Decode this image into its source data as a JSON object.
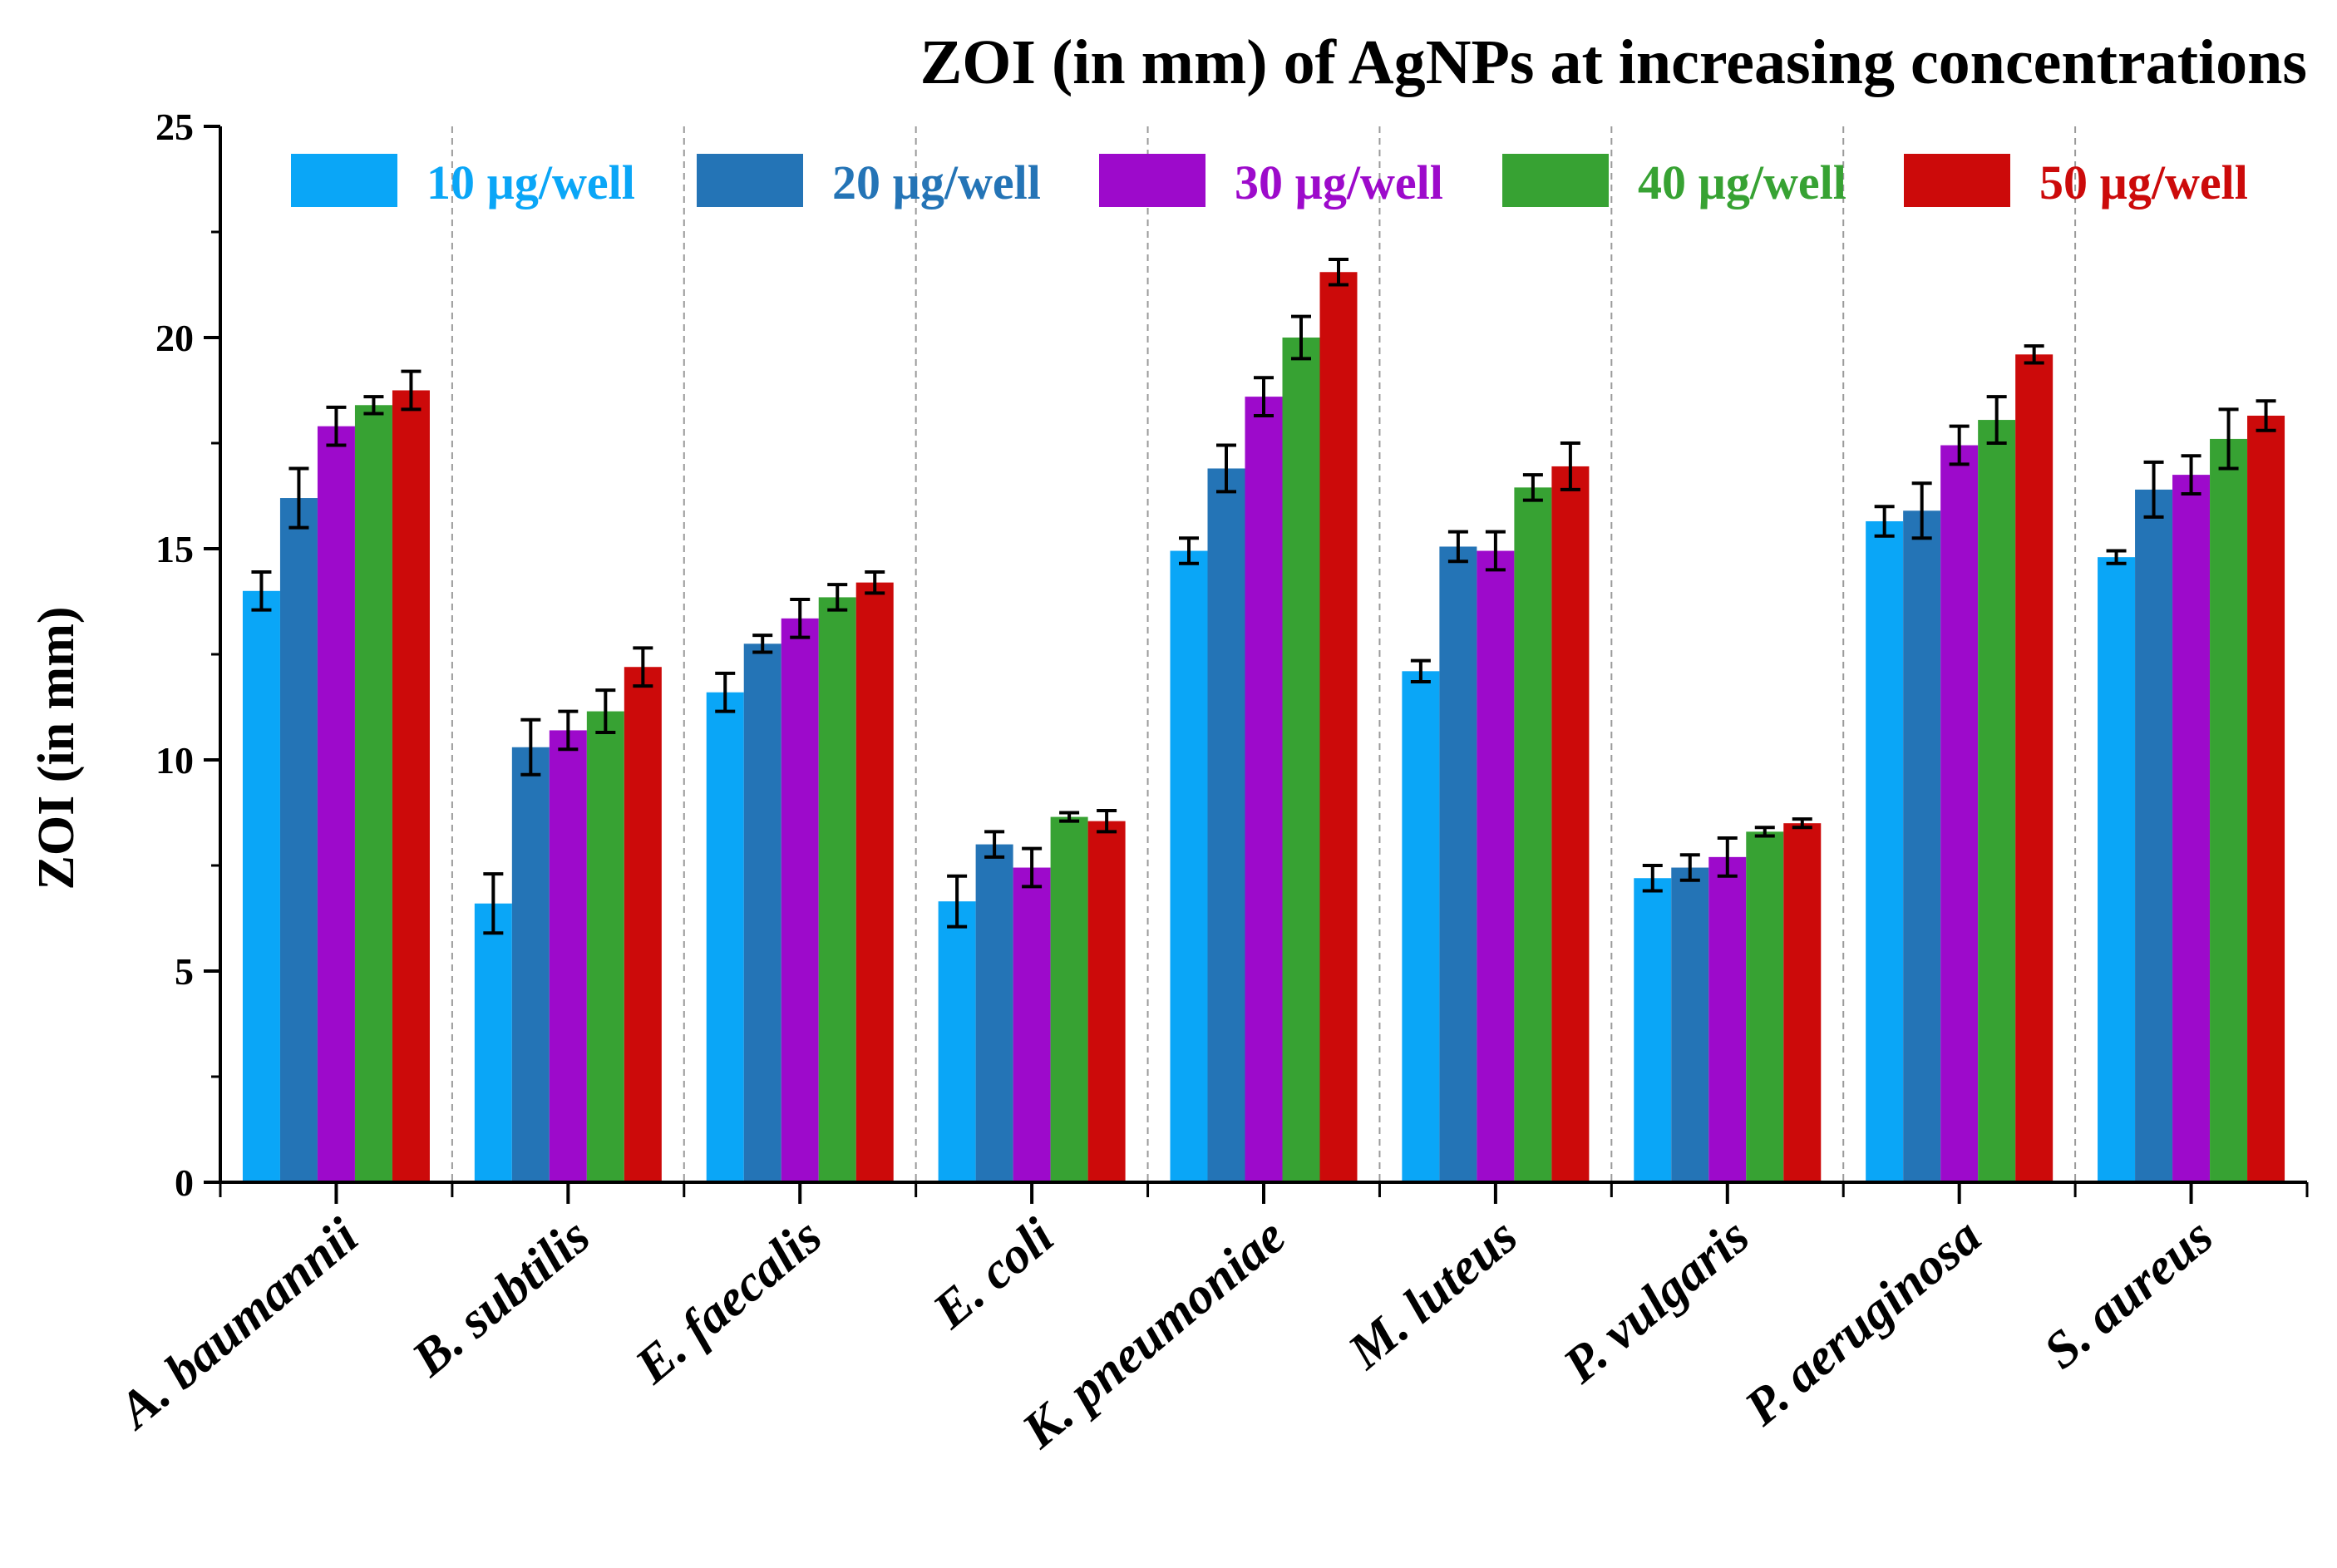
{
  "chart_data": {
    "type": "bar",
    "title": "ZOI (in mm) of AgNPs at increasing concentrations",
    "xlabel": "",
    "ylabel": "ZOI (in mm)",
    "ylim": [
      0,
      25
    ],
    "yticks": [
      "0",
      "5",
      "10",
      "15",
      "20",
      "25"
    ],
    "ytick_values": [
      0,
      5,
      10,
      15,
      20,
      25
    ],
    "grid": "vertical dashed separators between categories",
    "legend_position": "top",
    "categories": [
      "A. baumannii",
      "B. subtilis",
      "E. faecalis",
      "E. coli",
      "K. pneumoniae",
      "M. luteus",
      "P. vulgaris",
      "P. aeruginosa",
      "S. aureus"
    ],
    "series": [
      {
        "name": "10 µg/well",
        "color": "#0AA6F7",
        "values": [
          14.0,
          6.6,
          11.6,
          6.65,
          14.95,
          12.1,
          7.2,
          15.65,
          14.8
        ],
        "errors": [
          0.45,
          0.7,
          0.45,
          0.6,
          0.3,
          0.25,
          0.3,
          0.35,
          0.15
        ]
      },
      {
        "name": "20 µg/well",
        "color": "#2474B6",
        "values": [
          16.2,
          10.3,
          12.75,
          8.0,
          16.9,
          15.05,
          7.45,
          15.9,
          16.4
        ],
        "errors": [
          0.7,
          0.65,
          0.2,
          0.3,
          0.55,
          0.35,
          0.3,
          0.65,
          0.65
        ]
      },
      {
        "name": "30 µg/well",
        "color": "#9D0ACB",
        "values": [
          17.9,
          10.7,
          13.35,
          7.45,
          18.6,
          14.95,
          7.7,
          17.45,
          16.75
        ]
      },
      {
        "name": "40 µg/well",
        "color": "#37A233",
        "values": [
          18.4,
          11.15,
          13.85,
          8.65,
          20.0,
          16.45,
          8.3,
          18.05,
          17.6
        ],
        "errors": [
          0.2,
          0.5,
          0.3,
          0.1,
          0.5,
          0.3,
          0.1,
          0.55,
          0.7
        ]
      },
      {
        "name": "50 µg/well",
        "color": "#CC0A0A",
        "values": [
          18.75,
          12.2,
          14.2,
          8.55,
          21.55,
          16.95,
          8.5,
          19.6,
          18.15
        ],
        "errors": [
          0.45,
          0.45,
          0.25,
          0.25,
          0.3,
          0.55,
          0.1,
          0.2,
          0.35
        ]
      }
    ]
  }
}
